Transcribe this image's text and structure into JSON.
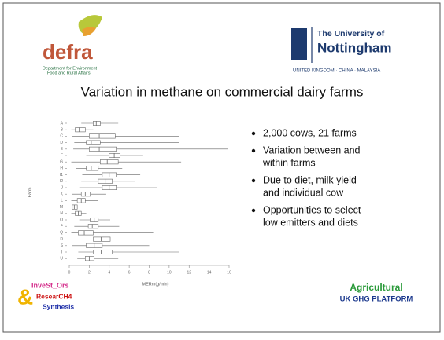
{
  "header": {
    "left_logo": {
      "name": "defra",
      "subtitle_lines": [
        "Department for Environment",
        "Food and Rural Affairs"
      ]
    },
    "right_logo": {
      "line1": "The University of",
      "line2": "Nottingham",
      "tagline": "UNITED KINGDOM · CHINA · MALAYSIA"
    }
  },
  "title": "Variation in methane on commercial dairy farms",
  "bullets": [
    [
      "2,000 cows, 21 farms"
    ],
    [
      "Variation between and",
      "within farms"
    ],
    [
      "Due to diet, milk yield",
      "and individual cow"
    ],
    [
      "Opportunities to select",
      "low emitters and diets"
    ]
  ],
  "footer": {
    "left_logo": [
      "InveSt_Ors",
      "ResearCH4",
      "Synthesis"
    ],
    "right_logo": [
      "Agricultural",
      "UK GHG PLATFORM"
    ]
  },
  "chart_data": {
    "type": "box",
    "x_label": "MERm(g/min)",
    "y_label": "Farm",
    "categories": [
      "A",
      "B",
      "C",
      "D",
      "E",
      "F",
      "G",
      "H",
      "I1",
      "I2",
      "J",
      "K",
      "L",
      "M",
      "N",
      "O",
      "P",
      "Q",
      "R",
      "S",
      "T",
      "U"
    ],
    "boxes": [
      {
        "min": 1.2,
        "q1": 2.4,
        "median": 2.7,
        "q3": 3.1,
        "max": 4.9
      },
      {
        "min": 0.2,
        "q1": 0.6,
        "median": 1.0,
        "q3": 1.6,
        "max": 2.4
      },
      {
        "min": 0.3,
        "q1": 2.0,
        "median": 3.0,
        "q3": 4.6,
        "max": 11
      },
      {
        "min": 0.5,
        "q1": 1.7,
        "median": 2.2,
        "q3": 3.1,
        "max": 11
      },
      {
        "min": 0.4,
        "q1": 2.0,
        "median": 3.0,
        "q3": 4.7,
        "max": 15.9
      },
      {
        "min": 1.7,
        "q1": 4.0,
        "median": 4.5,
        "q3": 5.1,
        "max": 7.4
      },
      {
        "min": 0.2,
        "q1": 3.1,
        "median": 3.8,
        "q3": 4.9,
        "max": 11.2
      },
      {
        "min": 0.7,
        "q1": 1.7,
        "median": 2.2,
        "q3": 2.9,
        "max": 5.3
      },
      {
        "min": 1.3,
        "q1": 3.3,
        "median": 4.0,
        "q3": 4.7,
        "max": 7.1
      },
      {
        "min": 1.2,
        "q1": 2.9,
        "median": 3.6,
        "q3": 4.3,
        "max": 6.6
      },
      {
        "min": 1.0,
        "q1": 3.3,
        "median": 4.0,
        "q3": 4.7,
        "max": 8.8
      },
      {
        "min": 0.3,
        "q1": 1.2,
        "median": 1.6,
        "q3": 2.1,
        "max": 3.7
      },
      {
        "min": 0.2,
        "q1": 0.8,
        "median": 1.2,
        "q3": 1.6,
        "max": 2.9
      },
      {
        "min": 0.1,
        "q1": 0.3,
        "median": 0.5,
        "q3": 0.8,
        "max": 1.3
      },
      {
        "min": 0.2,
        "q1": 0.6,
        "median": 0.9,
        "q3": 1.2,
        "max": 1.7
      },
      {
        "min": 1.0,
        "q1": 2.1,
        "median": 2.5,
        "q3": 2.9,
        "max": 4.1
      },
      {
        "min": 0.5,
        "q1": 1.9,
        "median": 2.3,
        "q3": 2.9,
        "max": 5.0
      },
      {
        "min": 0.2,
        "q1": 0.9,
        "median": 1.5,
        "q3": 2.4,
        "max": 8.4
      },
      {
        "min": 0.5,
        "q1": 2.4,
        "median": 3.2,
        "q3": 4.1,
        "max": 11.2
      },
      {
        "min": 0.3,
        "q1": 1.7,
        "median": 2.5,
        "q3": 3.3,
        "max": 8.0
      },
      {
        "min": 0.9,
        "q1": 2.4,
        "median": 3.2,
        "q3": 4.3,
        "max": 11.0
      },
      {
        "min": 0.8,
        "q1": 1.6,
        "median": 2.0,
        "q3": 2.5,
        "max": 4.9
      }
    ],
    "xlim": [
      0,
      16
    ],
    "xticks": [
      0,
      2,
      4,
      6,
      8,
      10,
      12,
      14,
      16
    ],
    "color": "#666666"
  }
}
